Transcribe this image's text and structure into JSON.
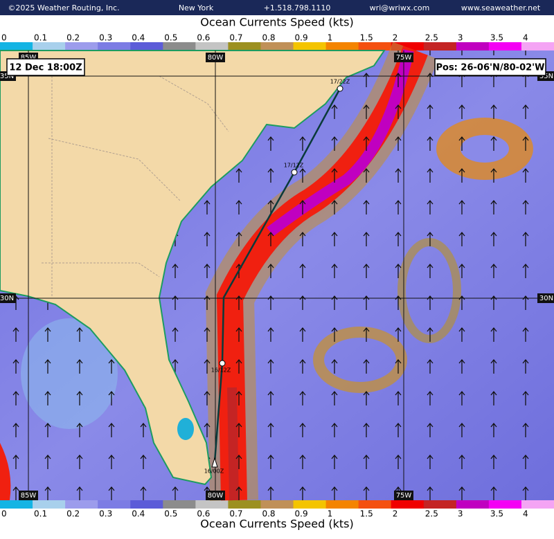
{
  "header": {
    "copyright": "©2025 Weather Routing, Inc.",
    "city": "New York",
    "phone": "+1.518.798.1110",
    "email": "wri@wriwx.com",
    "website": "www.seaweather.net"
  },
  "title": "Ocean Currents Speed (kts)",
  "color_scale": {
    "labels": [
      0,
      0.1,
      0.2,
      0.3,
      0.4,
      0.5,
      0.6,
      0.7,
      0.8,
      0.9,
      1,
      1.5,
      2,
      2.5,
      3,
      3.5,
      4
    ],
    "colors": [
      "#14b4e4",
      "#a8d0ec",
      "#9c9cec",
      "#7c7ce4",
      "#5c5cd8",
      "#8c8c8c",
      "#c4c4c4",
      "#9c9020",
      "#c09058",
      "#f4c400",
      "#f48400",
      "#f45010",
      "#f00000",
      "#c42424",
      "#c000c0",
      "#f400f4",
      "#f4a4f4"
    ]
  },
  "map": {
    "time": "12 Dec 18:00Z",
    "position": "Pos: 26-06'N/80-02'W",
    "longitude_labels": [
      "85W",
      "80W",
      "75W"
    ],
    "latitude_labels": [
      "35N",
      "30N"
    ],
    "waypoints": [
      "17/22Z",
      "17/12Z",
      "16/12Z",
      "16/00Z"
    ]
  }
}
